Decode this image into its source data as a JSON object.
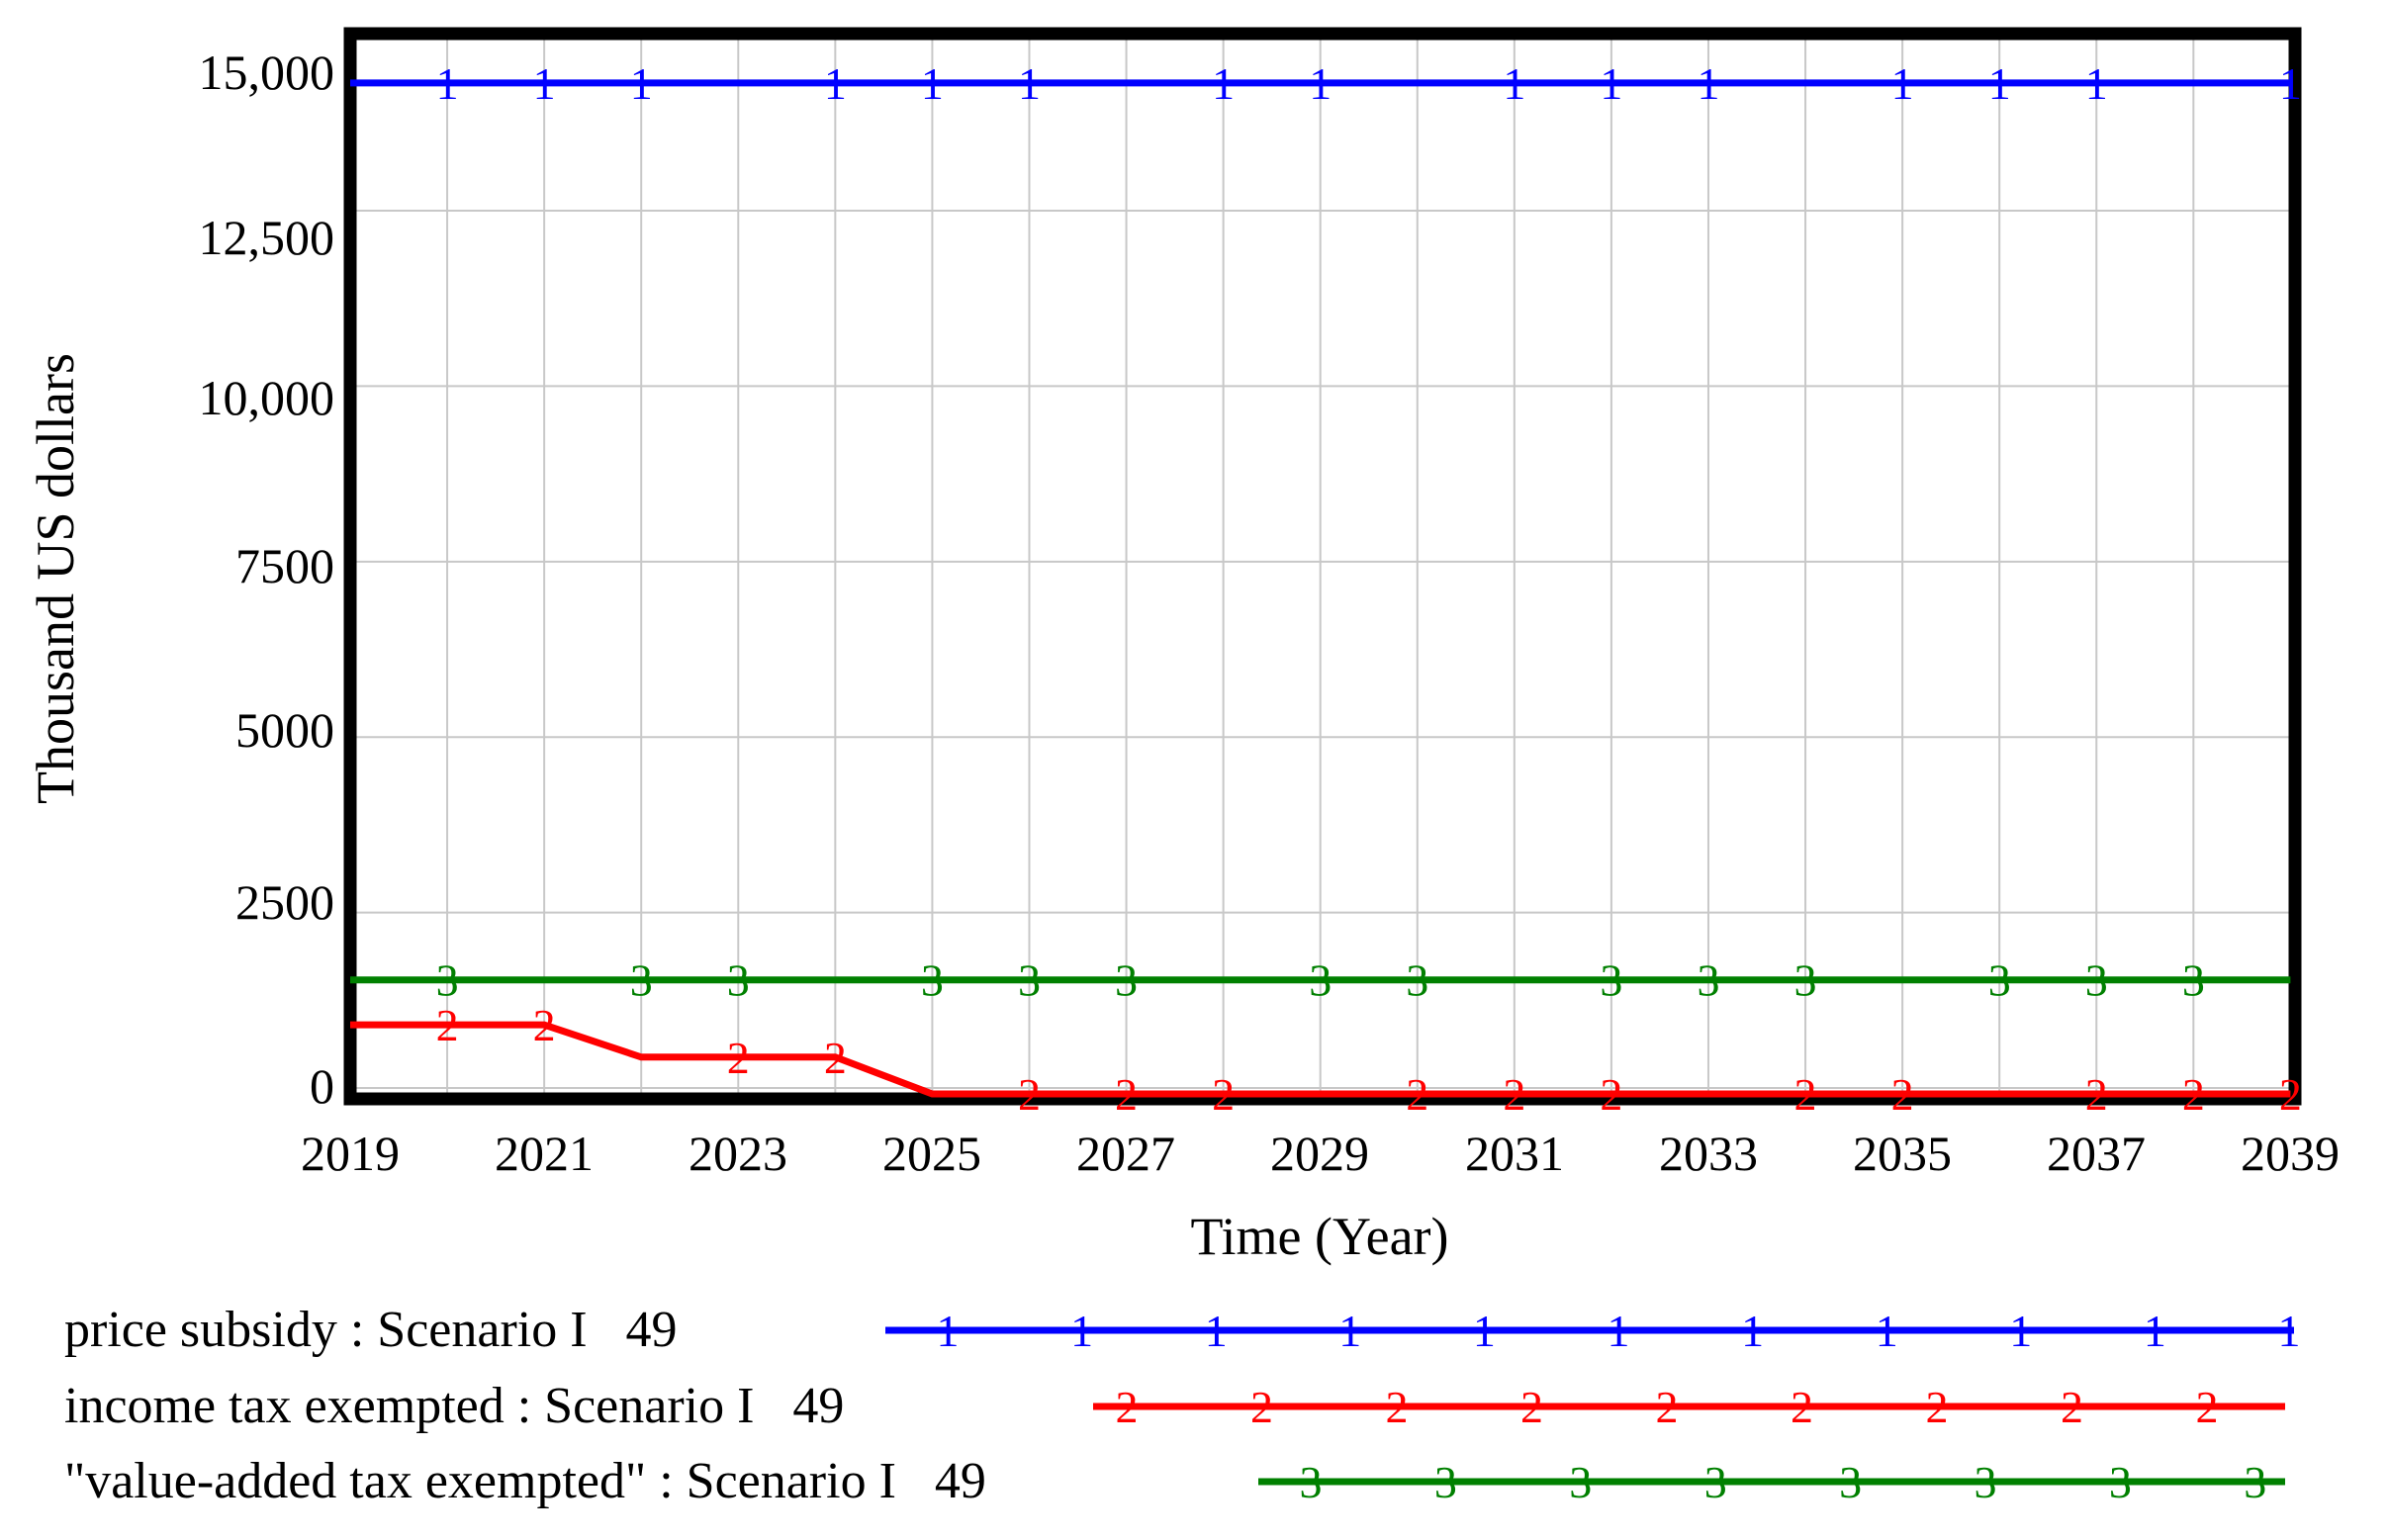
{
  "chart_data": {
    "type": "line",
    "title": "",
    "xlabel": "Time (Year)",
    "ylabel": "Thousand US dollars",
    "x_ticks": [
      "2019",
      "2021",
      "2023",
      "2025",
      "2027",
      "2029",
      "2031",
      "2033",
      "2035",
      "2037",
      "2039"
    ],
    "y_ticks": [
      "15,000",
      "12,500",
      "10,000",
      "7500",
      "5000",
      "2500",
      "0"
    ],
    "x_range": [
      2019,
      2039
    ],
    "y_range": [
      -100,
      15000
    ],
    "y_tick_step": 2500,
    "grid": true,
    "legend_position": "bottom-left",
    "series": [
      {
        "name": "price subsidy : Scenario I   49",
        "marker": "1",
        "color": "#0000ff",
        "x": [
          2019,
          2039
        ],
        "y": [
          14320,
          14320
        ],
        "marker_years": [
          2020,
          2021,
          2022,
          2024,
          2025,
          2026,
          2028,
          2029,
          2031,
          2032,
          2033,
          2035,
          2036,
          2037,
          2039
        ]
      },
      {
        "name": "income tax exempted : Scenario I   49",
        "marker": "2",
        "color": "#ff0000",
        "x": [
          2019,
          2021,
          2022,
          2024,
          2025,
          2039
        ],
        "y": [
          900,
          900,
          440,
          440,
          -85,
          -85
        ],
        "marker_years": [
          2020,
          2021,
          2023,
          2024,
          2026,
          2027,
          2028,
          2030,
          2031,
          2032,
          2034,
          2035,
          2037,
          2038,
          2039
        ]
      },
      {
        "name": "\"value-added tax exempted\" : Scenario I   49",
        "marker": "3",
        "color": "#008000",
        "x": [
          2019,
          2039
        ],
        "y": [
          1540,
          1540
        ],
        "marker_years": [
          2020,
          2022,
          2023,
          2025,
          2026,
          2027,
          2029,
          2030,
          2032,
          2033,
          2034,
          2036,
          2037,
          2038
        ]
      }
    ],
    "legend_swatches": [
      {
        "row": 0,
        "marker": "1",
        "marker_count": 11
      },
      {
        "row": 1,
        "marker": "2",
        "marker_count": 9
      },
      {
        "row": 2,
        "marker": "3",
        "marker_count": 8
      }
    ]
  },
  "colors": {
    "background": "#ffffff",
    "grid": "#c8c8c8",
    "axis_border": "#000000",
    "series_blue": "#0000ff",
    "series_red": "#ff0000",
    "series_green": "#008000"
  }
}
